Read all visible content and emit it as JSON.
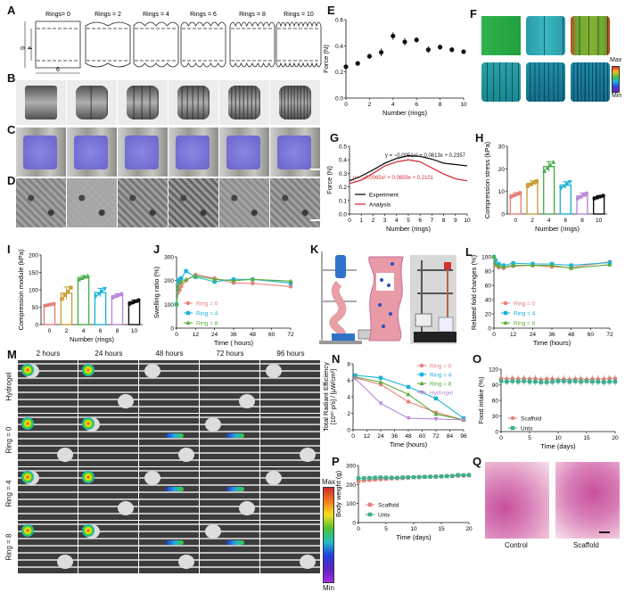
{
  "panels": {
    "A": {
      "label": "A",
      "rings_labels": [
        "Rings= 0",
        "Rings = 2",
        "Rings = 4",
        "Rings = 6",
        "Rings = 8",
        "Rings = 10"
      ],
      "dims": {
        "height": "6",
        "inner": "4",
        "width": "6"
      }
    },
    "B": {
      "label": "B"
    },
    "C": {
      "label": "C"
    },
    "D": {
      "label": "D"
    },
    "E": {
      "label": "E"
    },
    "F": {
      "label": "F",
      "colorbar_max": "Max",
      "colorbar_min": "Min"
    },
    "G": {
      "label": "G"
    },
    "H": {
      "label": "H"
    },
    "I": {
      "label": "I"
    },
    "J": {
      "label": "J"
    },
    "K": {
      "label": "K"
    },
    "L": {
      "label": "L"
    },
    "M": {
      "label": "M",
      "col_headers": [
        "2  hours",
        "24  hours",
        "48 hours",
        "72  hours",
        "96  hours"
      ],
      "row_headers": [
        "Hydrogel",
        "Ring = 0",
        "Ring = 4",
        "Ring = 8"
      ],
      "colorbar_max": "Max",
      "colorbar_min": "Min"
    },
    "N": {
      "label": "N"
    },
    "O": {
      "label": "O"
    },
    "P": {
      "label": "P"
    },
    "Q": {
      "label": "Q",
      "captions": [
        "Control",
        "Scaffold"
      ]
    }
  },
  "colors": {
    "ring0": "#e8807a",
    "ring2": "#c9a13b",
    "ring4": "#4caf50",
    "ring6": "#1fb3d6",
    "ring8": "#b98ad6",
    "ring10": "#111111",
    "ring4_line": "#1fb3d6",
    "ring8_line": "#5aae3c",
    "hydrogel": "#b98ad6",
    "scaffold": "#e8807a",
    "untx": "#3fae8c",
    "experiment": "#111111",
    "analysis": "#d62f3a"
  },
  "chart_data": [
    {
      "id": "E",
      "type": "scatter",
      "xlabel": "Number (rings)",
      "ylabel": "Force (N)",
      "xlim": [
        0,
        10
      ],
      "ylim": [
        0,
        0.6
      ],
      "xticks": [
        "0",
        "2",
        "4",
        "6",
        "8",
        "10"
      ],
      "yticks": [
        "0.0",
        "0.2",
        "0.4",
        "0.6"
      ],
      "x": [
        0,
        1,
        2,
        3,
        4,
        5,
        6,
        7,
        8,
        9,
        10
      ],
      "y": [
        0.24,
        0.265,
        0.32,
        0.35,
        0.475,
        0.43,
        0.445,
        0.37,
        0.39,
        0.37,
        0.355
      ],
      "err": [
        0.02,
        0.015,
        0.02,
        0.03,
        0.03,
        0.03,
        0.02,
        0.025,
        0.02,
        0.02,
        0.015
      ]
    },
    {
      "id": "G",
      "type": "line",
      "xlabel": "Number (rings)",
      "ylabel": "Force (N)",
      "xlim": [
        0,
        10
      ],
      "ylim": [
        0,
        0.5
      ],
      "xticks": [
        "0",
        "1",
        "2",
        "3",
        "4",
        "5",
        "6",
        "7",
        "8",
        "9",
        "10"
      ],
      "yticks": [
        "0.0",
        "0.1",
        "0.2",
        "0.3",
        "0.4",
        "0.5"
      ],
      "series": [
        {
          "name": "Experiment",
          "x": [
            0,
            1,
            2,
            3,
            4,
            5,
            6,
            7,
            8,
            9,
            10
          ],
          "values": [
            0.245,
            0.28,
            0.325,
            0.375,
            0.41,
            0.43,
            0.425,
            0.405,
            0.375,
            0.365,
            0.355
          ],
          "equation": "y = −0.0051x² + 0.0613x + 0.2357"
        },
        {
          "name": "Analysis",
          "x": [
            0,
            1,
            2,
            3,
            4,
            5,
            6,
            7,
            8,
            9,
            10
          ],
          "values": [
            0.225,
            0.25,
            0.3,
            0.355,
            0.385,
            0.4,
            0.385,
            0.34,
            0.295,
            0.26,
            0.245
          ],
          "equation": "y = −0.0065x² + 0.0659x + 0.2101"
        }
      ]
    },
    {
      "id": "H",
      "type": "bar",
      "xlabel": "Number (rings)",
      "ylabel": "Compression stress (kPa)",
      "ylim": [
        0,
        30
      ],
      "yticks": [
        "0",
        "10",
        "20",
        "30"
      ],
      "categories": [
        "0",
        "2",
        "4",
        "6",
        "8",
        "10"
      ],
      "values": [
        8.5,
        13.5,
        21,
        12.8,
        8,
        7.5
      ],
      "err": [
        1,
        1.2,
        2.2,
        1.5,
        1.3,
        0.7
      ]
    },
    {
      "id": "I",
      "type": "bar",
      "xlabel": "Number (rings)",
      "ylabel": "Compression module (kPa)",
      "ylim": [
        0,
        200
      ],
      "yticks": [
        "0",
        "50",
        "100",
        "150",
        "200"
      ],
      "categories": [
        "0",
        "2",
        "4",
        "6",
        "8",
        "10"
      ],
      "values": [
        57,
        90,
        135,
        92,
        83,
        65
      ],
      "err": [
        3,
        18,
        6,
        12,
        6,
        6
      ]
    },
    {
      "id": "J",
      "type": "line",
      "xlabel": "Time ( hours)",
      "ylabel": "Swelling ratio (%)",
      "xlim": [
        0,
        72
      ],
      "ylim": [
        0,
        300
      ],
      "xticks": [
        "0",
        "12",
        "24",
        "36",
        "48",
        "60",
        "72"
      ],
      "yticks": [
        "0",
        "100",
        "200",
        "300"
      ],
      "series": [
        {
          "name": "Ring = 0",
          "x": [
            0,
            1,
            2,
            3,
            6,
            12,
            24,
            36,
            48,
            72
          ],
          "values": [
            100,
            150,
            160,
            175,
            200,
            225,
            210,
            190,
            188,
            175
          ]
        },
        {
          "name": "Ring = 4",
          "x": [
            0,
            1,
            2,
            3,
            6,
            12,
            24,
            36,
            48,
            72
          ],
          "values": [
            100,
            200,
            205,
            210,
            240,
            215,
            195,
            205,
            205,
            190
          ]
        },
        {
          "name": "Ring = 8",
          "x": [
            0,
            1,
            2,
            3,
            6,
            12,
            24,
            36,
            48,
            72
          ],
          "values": [
            100,
            170,
            190,
            195,
            205,
            220,
            205,
            200,
            205,
            198
          ]
        }
      ]
    },
    {
      "id": "L",
      "type": "line",
      "xlabel": "Time (hours)",
      "ylabel": "Related fold changes (%)",
      "xlim": [
        0,
        72
      ],
      "ylim": [
        0,
        100
      ],
      "xticks": [
        "0",
        "12",
        "24",
        "36",
        "48",
        "60",
        "72"
      ],
      "yticks": [
        "0",
        "20",
        "40",
        "60",
        "80",
        "100"
      ],
      "series": [
        {
          "name": "Ring = 0",
          "x": [
            0,
            1,
            3,
            6,
            12,
            24,
            36,
            48,
            72
          ],
          "values": [
            100,
            88,
            85,
            84,
            87,
            88,
            86,
            85,
            93
          ]
        },
        {
          "name": "Ring = 4",
          "x": [
            0,
            1,
            3,
            6,
            12,
            24,
            36,
            48,
            72
          ],
          "values": [
            100,
            95,
            90,
            88,
            91,
            90,
            90,
            88,
            92
          ]
        },
        {
          "name": "Ring = 8",
          "x": [
            0,
            1,
            3,
            6,
            12,
            24,
            36,
            48,
            72
          ],
          "values": [
            100,
            90,
            87,
            86,
            88,
            88,
            88,
            84,
            89
          ]
        }
      ]
    },
    {
      "id": "N",
      "type": "line",
      "xlabel": "Time (hours)",
      "ylabel": "Total Radiant Efficiency",
      "ylabel2": "[10¹⁰ p/s] / [µW/cm²]",
      "xlim": [
        0,
        96
      ],
      "ylim": [
        0,
        8
      ],
      "xticks": [
        "0",
        "12",
        "24",
        "36",
        "48",
        "60",
        "72",
        "84",
        "96"
      ],
      "yticks": [
        "0",
        "2",
        "4",
        "6",
        "8"
      ],
      "series": [
        {
          "name": "Ring = 0",
          "x": [
            2,
            24,
            48,
            72,
            96
          ],
          "values": [
            6.3,
            5.5,
            3.4,
            2.1,
            1.2
          ]
        },
        {
          "name": "Ring = 4",
          "x": [
            2,
            24,
            48,
            72,
            96
          ],
          "values": [
            6.6,
            6.3,
            5.2,
            3.8,
            1.4
          ]
        },
        {
          "name": "Ring = 8",
          "x": [
            2,
            24,
            48,
            72,
            96
          ],
          "values": [
            6.4,
            5.8,
            4.3,
            1.9,
            1.2
          ]
        },
        {
          "name": "Hydrogel",
          "x": [
            2,
            24,
            48,
            72,
            96
          ],
          "values": [
            6.2,
            3.2,
            1.4,
            1.3,
            1.2
          ]
        }
      ]
    },
    {
      "id": "O",
      "type": "line",
      "xlabel": "Time (days)",
      "ylabel": "Food intake (%)",
      "xlim": [
        0,
        20
      ],
      "ylim": [
        0,
        120
      ],
      "xticks": [
        "0",
        "5",
        "10",
        "15",
        "20"
      ],
      "yticks": [
        "0",
        "30",
        "60",
        "90",
        "120"
      ],
      "series": [
        {
          "name": "Scaffold",
          "x": [
            0,
            1,
            2,
            3,
            4,
            5,
            6,
            7,
            8,
            9,
            10,
            11,
            12,
            13,
            14,
            15,
            16,
            17,
            18,
            19,
            20
          ],
          "values": [
            102,
            101,
            102,
            101,
            102,
            101,
            102,
            100,
            101,
            101,
            100,
            101,
            100,
            101,
            101,
            100,
            101,
            101,
            101,
            102,
            102
          ]
        },
        {
          "name": "Untx",
          "x": [
            0,
            1,
            2,
            3,
            4,
            5,
            6,
            7,
            8,
            9,
            10,
            11,
            12,
            13,
            14,
            15,
            16,
            17,
            18,
            19,
            20
          ],
          "values": [
            97,
            96,
            97,
            96,
            97,
            96,
            96,
            95,
            95,
            96,
            97,
            97,
            96,
            97,
            96,
            97,
            96,
            96,
            95,
            96,
            96
          ]
        }
      ]
    },
    {
      "id": "P",
      "type": "line",
      "xlabel": "Time (days)",
      "ylabel": "Body weight (g)",
      "xlim": [
        0,
        20
      ],
      "ylim": [
        0,
        300
      ],
      "xticks": [
        "0",
        "5",
        "10",
        "15",
        "20"
      ],
      "yticks": [
        "0",
        "100",
        "200",
        "300"
      ],
      "series": [
        {
          "name": "Scaffold",
          "x": [
            0,
            1,
            2,
            3,
            4,
            5,
            6,
            7,
            8,
            9,
            10,
            11,
            12,
            13,
            14,
            15,
            16,
            17,
            18,
            19,
            20
          ],
          "values": [
            218,
            222,
            224,
            226,
            228,
            230,
            232,
            233,
            234,
            236,
            238,
            239,
            240,
            241,
            242,
            243,
            244,
            245,
            246,
            247,
            248
          ]
        },
        {
          "name": "Untx",
          "x": [
            0,
            1,
            2,
            3,
            4,
            5,
            6,
            7,
            8,
            9,
            10,
            11,
            12,
            13,
            14,
            15,
            16,
            17,
            18,
            19,
            20
          ],
          "values": [
            232,
            233,
            234,
            236,
            237,
            236,
            236,
            235,
            237,
            238,
            238,
            239,
            240,
            241,
            241,
            242,
            244,
            245,
            250,
            249,
            250
          ]
        }
      ]
    }
  ]
}
